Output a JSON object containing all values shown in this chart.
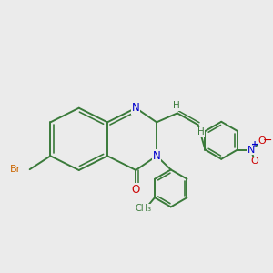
{
  "background_color": "#ebebeb",
  "bond_color": "#3a7a3a",
  "N_color": "#0000cc",
  "O_color": "#cc0000",
  "Br_color": "#cc6600",
  "figsize": [
    3.0,
    3.0
  ],
  "dpi": 100,
  "xlim": [
    0,
    10
  ],
  "ylim": [
    0,
    10
  ]
}
